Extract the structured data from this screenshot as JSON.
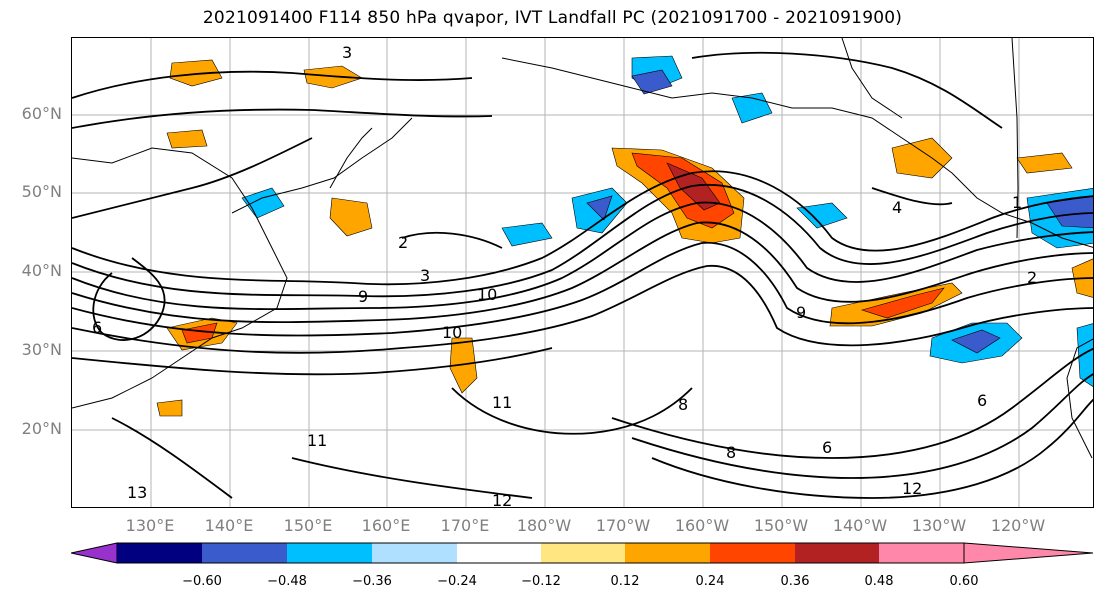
{
  "title": "2021091400 F114 850 hPa qvapor, IVT Landfall PC (2021091700 - 2021091900)",
  "lat_labels": [
    "60°N",
    "50°N",
    "40°N",
    "30°N",
    "20°N"
  ],
  "lon_labels": [
    "130°E",
    "140°E",
    "150°E",
    "160°E",
    "170°E",
    "180°W",
    "170°W",
    "160°W",
    "150°W",
    "140°W",
    "130°W",
    "120°W"
  ],
  "colorbar": {
    "ticks": [
      "−0.60",
      "−0.48",
      "−0.36",
      "−0.24",
      "−0.12",
      "0.12",
      "0.24",
      "0.36",
      "0.48",
      "0.60"
    ],
    "colors": [
      "#9932CC",
      "#000080",
      "#3A5BCC",
      "#00BFFF",
      "#B0E0FF",
      "#FFFFFF",
      "#FFE680",
      "#FFA500",
      "#FF4500",
      "#B22222",
      "#FF88AA"
    ]
  },
  "contour_labels": [
    {
      "text": "3"
    },
    {
      "text": "9"
    },
    {
      "text": "10"
    },
    {
      "text": "10"
    },
    {
      "text": "11"
    },
    {
      "text": "11"
    },
    {
      "text": "12"
    },
    {
      "text": "12"
    },
    {
      "text": "13"
    },
    {
      "text": "9"
    },
    {
      "text": "8"
    },
    {
      "text": "8"
    },
    {
      "text": "6"
    },
    {
      "text": "6"
    },
    {
      "text": "4"
    },
    {
      "text": "2"
    },
    {
      "text": "6"
    },
    {
      "text": "3"
    },
    {
      "text": "2"
    },
    {
      "text": "1"
    }
  ]
}
